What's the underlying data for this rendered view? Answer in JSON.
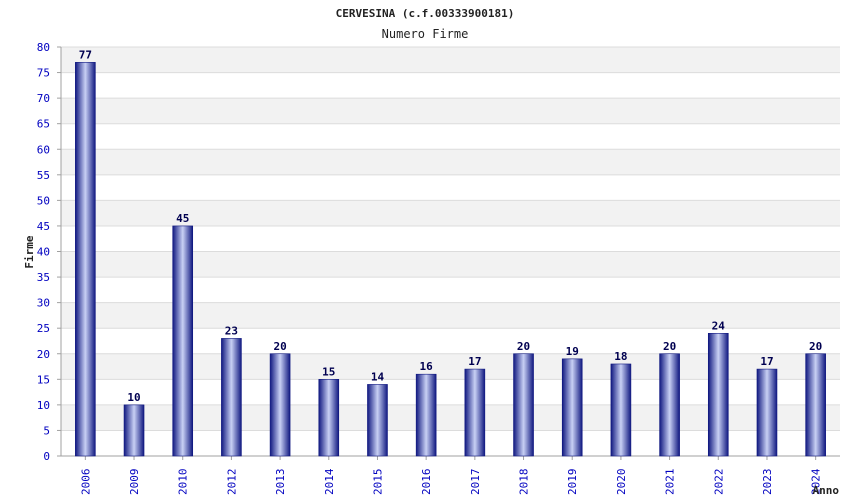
{
  "chart_data": {
    "type": "bar",
    "title": "CERVESINA (c.f.00333900181)",
    "subtitle": "Numero Firme",
    "xlabel": "Anno",
    "ylabel": "Firme",
    "categories": [
      "2006",
      "2009",
      "2010",
      "2012",
      "2013",
      "2014",
      "2015",
      "2016",
      "2017",
      "2018",
      "2019",
      "2020",
      "2021",
      "2022",
      "2023",
      "2024"
    ],
    "values": [
      77,
      10,
      45,
      23,
      20,
      15,
      14,
      16,
      17,
      20,
      19,
      18,
      20,
      24,
      17,
      20
    ],
    "ylim": [
      0,
      80
    ],
    "yticks": [
      "0",
      "5",
      "10",
      "15",
      "20",
      "25",
      "30",
      "35",
      "40",
      "45",
      "50",
      "55",
      "60",
      "65",
      "70",
      "75",
      "80"
    ],
    "grid": true,
    "legend": "none"
  },
  "colors": {
    "bar_dark": "#101880",
    "bar_light": "#c8d0f4",
    "tick_label": "#0000c0",
    "value_label": "#000050",
    "title_text": "#222222",
    "band_shade": "#f2f2f2",
    "gridline": "#dcdcdc",
    "axis_line": "#a0a0a0"
  }
}
